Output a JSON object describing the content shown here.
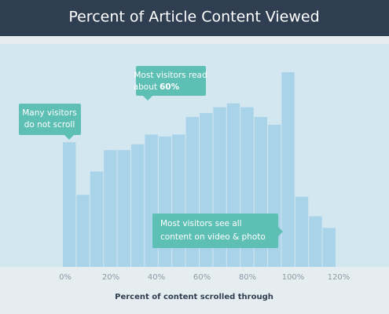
{
  "chart_data": {
    "type": "histogram",
    "title": "Percent of Article Content Viewed",
    "xlabel": "Percent of content scrolled through",
    "bins": [
      0,
      6,
      12,
      18,
      24,
      30,
      36,
      42,
      48,
      54,
      60,
      66,
      72,
      78,
      84,
      90,
      96,
      102,
      108,
      114,
      120
    ],
    "values": [
      64,
      37,
      49,
      60,
      60,
      63,
      68,
      67,
      68,
      77,
      79,
      82,
      84,
      82,
      77,
      73,
      100,
      36,
      26,
      20
    ],
    "color": "#a9d3e9",
    "xlim": [
      0,
      120
    ],
    "xticks": [
      {
        "value": 0,
        "label": "0%"
      },
      {
        "value": 20,
        "label": "20%"
      },
      {
        "value": 40,
        "label": "40%"
      },
      {
        "value": 60,
        "label": "60%"
      },
      {
        "value": 80,
        "label": "80%"
      },
      {
        "value": 100,
        "label": "100%"
      },
      {
        "value": 120,
        "label": "120%"
      }
    ],
    "ylim": [
      0,
      100
    ],
    "annotations": [
      {
        "lines": [
          "Many visitors",
          "do not scroll"
        ]
      },
      {
        "lines": [
          "Most visitors read",
          "about",
          "60%"
        ]
      },
      {
        "lines": [
          "Most visitors see all",
          "content on video & photo"
        ]
      }
    ]
  }
}
